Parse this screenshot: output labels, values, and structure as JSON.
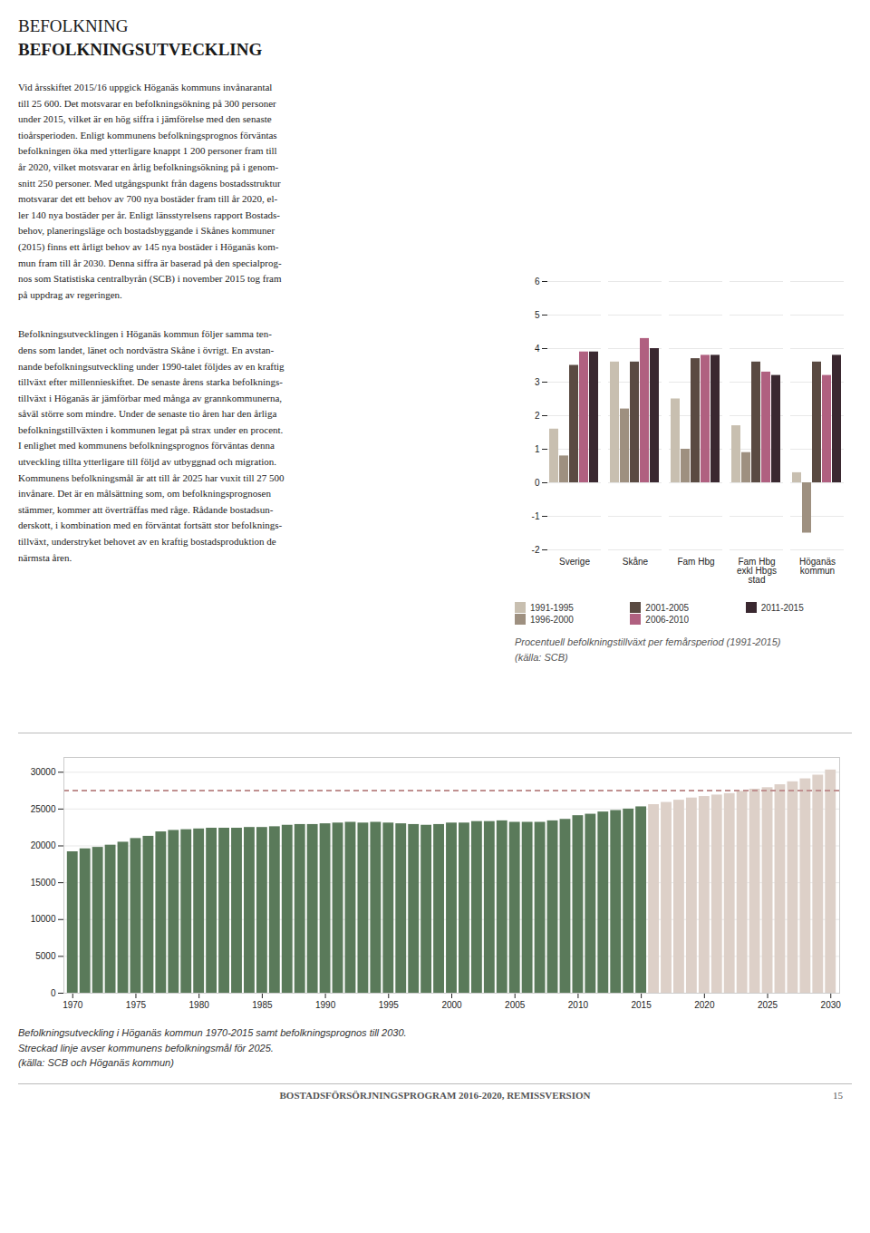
{
  "title": "BEFOLKNING",
  "subtitle": "BEFOLKNINGSUTVECKLING",
  "body_text": [
    [
      "Vid årsskiftet 2015/16 uppgick Höganäs kommuns invånarantal",
      "till 25 600. Det motsvarar en befolkningsökning på 300 personer",
      "under 2015, vilket är en hög siffra i jämförelse med den senaste",
      "tioårsperioden. Enligt kommunens befolkningsprognos förväntas",
      "befolkningen öka med ytterligare knappt 1 200 personer fram till",
      "år 2020, vilket motsvarar en årlig befolkningsökning på i genom-",
      "snitt 250 personer. Med utgångspunkt från dagens bostadsstruktur",
      "motsvarar det ett behov av 700 nya bostäder fram till år 2020, el-",
      "ler 140 nya bostäder per år. Enligt länsstyrelsens rapport Bostads-",
      "behov, planeringsläge och bostadsbyggande i Skånes kommuner",
      "(2015) finns ett årligt behov av 145 nya bostäder i Höganäs kom-",
      "mun fram till år 2030. Denna siffra är baserad på den specialprog-",
      "nos som Statistiska centralbyrån (SCB) i november 2015 tog fram",
      "på uppdrag av regeringen."
    ],
    [
      "Befolkningsutvecklingen i Höganäs kommun följer samma ten-",
      "dens som landet, länet och nordvästra Skåne i övrigt. En avstan-",
      "nande befolkningsutveckling under 1990-talet följdes av en kraftig",
      "tillväxt efter millennieskiftet. De senaste årens starka befolknings-",
      "tillväxt i Höganäs är jämförbar med många av grannkommunerna,",
      "såväl större som mindre. Under de senaste tio åren har den årliga",
      "befolkningstillväxten i kommunen legat på strax under en procent.",
      "I enlighet med kommunens befolkningsprognos förväntas denna",
      "utveckling tillta ytterligare till följd av utbyggnad och migration.",
      "Kommunens befolkningsmål är att till år 2025 har vuxit till 27 500",
      "invånare. Det är en målsättning som, om befolkningsprognosen",
      "stämmer, kommer att överträffas med råge. Rådande bostadsun-",
      "derskott, i kombination med en förväntat fortsätt stor befolknings-",
      "tillväxt, understryket behovet av en kraftig bostadsproduktion de",
      "närmsta åren."
    ]
  ],
  "footer": "BOSTADSFÖRSÖRJNINGSPROGRAM 2016-2020, REMISSVERSION",
  "page_number": "15",
  "chart_data": [
    {
      "type": "bar",
      "categories": [
        "Sverige",
        "Skåne",
        "Fam Hbg",
        "Fam Hbg\nexkl Hbgs\nstad",
        "Höganäs\nkommun"
      ],
      "series": [
        {
          "name": "1991-1995",
          "color": "#c8bfb0",
          "values": [
            1.6,
            3.6,
            2.5,
            1.7,
            0.3
          ]
        },
        {
          "name": "1996-2000",
          "color": "#9e9080",
          "values": [
            0.8,
            2.2,
            1.0,
            0.9,
            -1.5
          ]
        },
        {
          "name": "2001-2005",
          "color": "#5a4a42",
          "values": [
            3.5,
            3.6,
            3.7,
            3.6,
            3.6
          ]
        },
        {
          "name": "2006-2010",
          "color": "#b06080",
          "values": [
            3.9,
            4.3,
            3.8,
            3.3,
            3.2
          ]
        },
        {
          "name": "2011-2015",
          "color": "#3a2830",
          "values": [
            3.9,
            4.0,
            3.8,
            3.2,
            3.8
          ]
        }
      ],
      "ylim": [
        -2,
        6
      ],
      "yticks": [
        -2,
        -1,
        0,
        1,
        2,
        3,
        4,
        5,
        6
      ],
      "grid": true,
      "legend": "bottom",
      "caption": [
        "Procentuell befolkningstillväxt per femårsperiod (1991-2015)",
        "(källa: SCB)"
      ]
    },
    {
      "type": "bar",
      "x": [
        1970,
        1971,
        1972,
        1973,
        1974,
        1975,
        1976,
        1977,
        1978,
        1979,
        1980,
        1981,
        1982,
        1983,
        1984,
        1985,
        1986,
        1987,
        1988,
        1989,
        1990,
        1991,
        1992,
        1993,
        1994,
        1995,
        1996,
        1997,
        1998,
        1999,
        2000,
        2001,
        2002,
        2003,
        2004,
        2005,
        2006,
        2007,
        2008,
        2009,
        2010,
        2011,
        2012,
        2013,
        2014,
        2015,
        2016,
        2017,
        2018,
        2019,
        2020,
        2021,
        2022,
        2023,
        2024,
        2025,
        2026,
        2027,
        2028,
        2029,
        2030
      ],
      "values": [
        19200,
        19600,
        19800,
        20100,
        20500,
        21000,
        21300,
        21900,
        22100,
        22200,
        22300,
        22400,
        22400,
        22400,
        22500,
        22500,
        22600,
        22800,
        22900,
        22900,
        23000,
        23100,
        23200,
        23100,
        23200,
        23100,
        23000,
        22900,
        22800,
        22900,
        23100,
        23100,
        23300,
        23300,
        23400,
        23200,
        23200,
        23200,
        23400,
        23600,
        24100,
        24300,
        24600,
        24800,
        25000,
        25300,
        25600,
        25900,
        26200,
        26500,
        26700,
        26900,
        27100,
        27400,
        27700,
        27900,
        28300,
        28700,
        29100,
        29600,
        30300
      ],
      "colors": [
        "#5a7a5a",
        "#5a7a5a",
        "#5a7a5a",
        "#5a7a5a",
        "#5a7a5a",
        "#5a7a5a",
        "#5a7a5a",
        "#5a7a5a",
        "#5a7a5a",
        "#5a7a5a",
        "#5a7a5a",
        "#5a7a5a",
        "#5a7a5a",
        "#5a7a5a",
        "#5a7a5a",
        "#5a7a5a",
        "#5a7a5a",
        "#5a7a5a",
        "#5a7a5a",
        "#5a7a5a",
        "#5a7a5a",
        "#5a7a5a",
        "#5a7a5a",
        "#5a7a5a",
        "#5a7a5a",
        "#5a7a5a",
        "#5a7a5a",
        "#5a7a5a",
        "#5a7a5a",
        "#5a7a5a",
        "#5a7a5a",
        "#5a7a5a",
        "#5a7a5a",
        "#5a7a5a",
        "#5a7a5a",
        "#5a7a5a",
        "#5a7a5a",
        "#5a7a5a",
        "#5a7a5a",
        "#5a7a5a",
        "#5a7a5a",
        "#5a7a5a",
        "#5a7a5a",
        "#5a7a5a",
        "#5a7a5a",
        "#5a7a5a",
        "#ddd0c8",
        "#ddd0c8",
        "#ddd0c8",
        "#ddd0c8",
        "#ddd0c8",
        "#ddd0c8",
        "#ddd0c8",
        "#ddd0c8",
        "#ddd0c8",
        "#ddd0c8",
        "#ddd0c8",
        "#ddd0c8",
        "#ddd0c8",
        "#ddd0c8",
        "#ddd0c8"
      ],
      "xlim": [
        1969.3,
        2030.7
      ],
      "xticks": [
        1970,
        1975,
        1980,
        1985,
        1990,
        1995,
        2000,
        2005,
        2010,
        2015,
        2020,
        2025,
        2030
      ],
      "ylim": [
        0,
        32000
      ],
      "yticks": [
        0,
        5000,
        10000,
        15000,
        20000,
        25000,
        30000
      ],
      "grid": true,
      "reference_lines": [
        {
          "y": 27500,
          "color": "#c09090",
          "line_style": "dashed"
        }
      ],
      "caption": [
        "Befolkningsutveckling i Höganäs kommun 1970-2015 samt befolkningsprognos till 2030.",
        "Streckad linje avser kommunens befolkningsmål för 2025.",
        "(källa: SCB och Höganäs kommun)"
      ]
    }
  ]
}
